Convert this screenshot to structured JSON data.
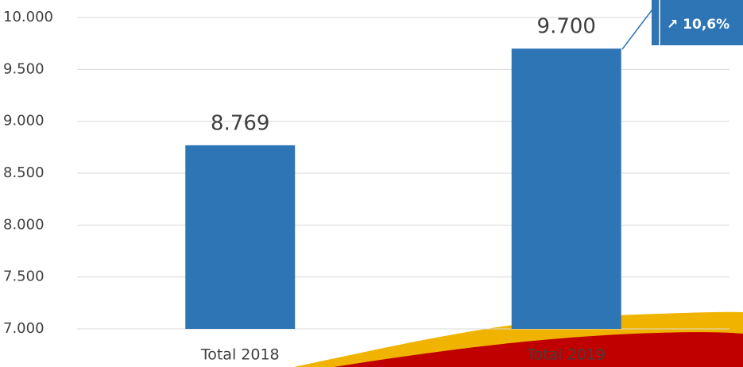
{
  "chart_data": {
    "type": "bar",
    "categories": [
      "Total 2018",
      "Total 2019"
    ],
    "values": [
      8769,
      9700
    ],
    "value_labels": [
      "8.769",
      "9.700"
    ],
    "color": "#2e75b6",
    "ylim": [
      7000,
      10000
    ],
    "yticks": [
      {
        "value": 7000,
        "label": "7.000"
      },
      {
        "value": 7500,
        "label": "7.500"
      },
      {
        "value": 8000,
        "label": "8.000"
      },
      {
        "value": 8500,
        "label": "8.500"
      },
      {
        "value": 9000,
        "label": "9.000"
      },
      {
        "value": 9500,
        "label": "9.500"
      },
      {
        "value": 10000,
        "label": "10.000"
      }
    ],
    "grid": true,
    "annotation": "↗ 10,6%"
  }
}
